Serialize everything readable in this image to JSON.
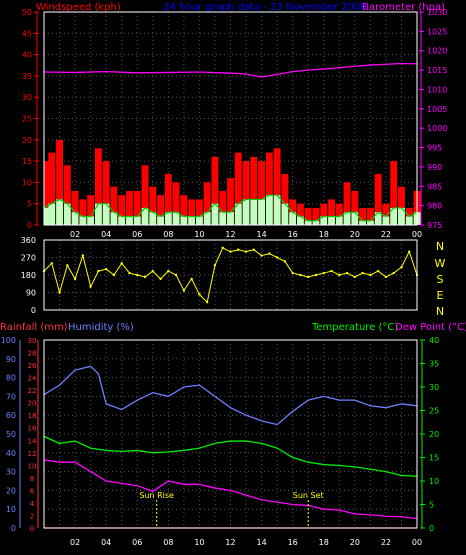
{
  "colors": {
    "background": "#000000",
    "windspeed": "#ff0000",
    "windspeed_avg": "#00cc00",
    "windspeed_fill": "#c0ffc0",
    "barometer": "#ff00ff",
    "title": "#0000ff",
    "winddir": "#ffff00",
    "compass": "#ffff00",
    "rainfall": "#ff3333",
    "humidity": "#6f7fff",
    "temperature": "#00ee00",
    "dewpoint": "#ff00ff",
    "sun_markers": "#ffff00",
    "frame": "#ffffff",
    "grid": "#555555"
  },
  "header": {
    "windspeed_label": "Windspeed (kph)",
    "title": "24 hour graph data - 23 November 2008",
    "barometer_label": "Barometer (hpa)"
  },
  "lower_header": {
    "rainfall_label": "Rainfall (mm)",
    "humidity_label": "Humidity (%)",
    "temperature_label": "Temperature (°C)",
    "dewpoint_label": "Dew Point (°C)"
  },
  "compass": [
    "N",
    "W",
    "S",
    "E",
    "N"
  ],
  "annotations": {
    "sun_rise": "Sun Rise",
    "sun_set": "Sun Set"
  },
  "chart_data": [
    {
      "type": "line",
      "name": "wind-and-pressure",
      "x_ticks": [
        "02",
        "04",
        "06",
        "08",
        "10",
        "12",
        "14",
        "16",
        "18",
        "20",
        "22",
        "00"
      ],
      "x_range_hours": [
        0,
        24
      ],
      "y_left": {
        "label": "Windspeed (kph)",
        "ticks": [
          0,
          5,
          10,
          15,
          20,
          25,
          30,
          35,
          40,
          45,
          50
        ],
        "range": [
          0,
          50
        ]
      },
      "y_right": {
        "label": "Barometer (hpa)",
        "ticks": [
          975,
          980,
          985,
          990,
          995,
          1000,
          1005,
          1010,
          1015,
          1020,
          1025,
          1030
        ],
        "range": [
          975,
          1030
        ]
      },
      "grid": true,
      "series": [
        {
          "name": "Windspeed (kph)",
          "kind": "gust",
          "x": [
            0,
            0.5,
            1,
            1.5,
            2,
            2.5,
            3,
            3.5,
            4,
            4.5,
            5,
            5.5,
            6,
            6.5,
            7,
            7.5,
            8,
            8.5,
            9,
            9.5,
            10,
            10.5,
            11,
            11.5,
            12,
            12.5,
            13,
            13.5,
            14,
            14.5,
            15,
            15.5,
            16,
            16.5,
            17,
            17.5,
            18,
            18.5,
            19,
            19.5,
            20,
            20.5,
            21,
            21.5,
            22,
            22.5,
            23,
            23.5,
            24
          ],
          "y": [
            15,
            17,
            20,
            14,
            8,
            6,
            7,
            18,
            15,
            9,
            7,
            8,
            8,
            14,
            9,
            7,
            12,
            10,
            7,
            6,
            6,
            10,
            16,
            8,
            11,
            17,
            15,
            16,
            15,
            17,
            18,
            12,
            6,
            5,
            4,
            4,
            5,
            6,
            5,
            10,
            8,
            4,
            4,
            12,
            5,
            15,
            9,
            4,
            8
          ]
        },
        {
          "name": "Average windspeed",
          "kind": "average",
          "x": [
            0,
            0.5,
            1,
            1.5,
            2,
            2.5,
            3,
            3.5,
            4,
            4.5,
            5,
            5.5,
            6,
            6.5,
            7,
            7.5,
            8,
            8.5,
            9,
            9.5,
            10,
            10.5,
            11,
            11.5,
            12,
            12.5,
            13,
            13.5,
            14,
            14.5,
            15,
            15.5,
            16,
            16.5,
            17,
            17.5,
            18,
            18.5,
            19,
            19.5,
            20,
            20.5,
            21,
            21.5,
            22,
            22.5,
            23,
            23.5,
            24
          ],
          "y": [
            4,
            5,
            6,
            5,
            3,
            2,
            2,
            5,
            5,
            3,
            2,
            2,
            2,
            4,
            3,
            2,
            3,
            3,
            2,
            2,
            2,
            3,
            5,
            3,
            3,
            5,
            6,
            6,
            6,
            7,
            7,
            5,
            3,
            2,
            1,
            1,
            2,
            2,
            2,
            3,
            3,
            1,
            1,
            3,
            2,
            4,
            4,
            2,
            3
          ]
        },
        {
          "name": "Barometer (hpa)",
          "x": [
            0,
            2,
            4,
            6,
            8,
            10,
            12,
            13,
            14,
            15,
            16,
            17,
            18,
            19,
            20,
            21,
            22,
            23,
            24
          ],
          "y": [
            1014.5,
            1014.4,
            1014.6,
            1014.3,
            1014.4,
            1014.5,
            1014.2,
            1014,
            1013.2,
            1013.9,
            1014.6,
            1015,
            1015.3,
            1015.6,
            1016,
            1016.3,
            1016.5,
            1016.7,
            1016.6
          ]
        }
      ]
    },
    {
      "type": "scatter",
      "name": "wind-direction",
      "x_range_hours": [
        0,
        24
      ],
      "y": {
        "ticks": [
          0,
          90,
          180,
          270,
          360
        ],
        "range": [
          0,
          360
        ]
      },
      "grid": true,
      "series": [
        {
          "name": "Wind direction",
          "x": [
            0,
            0.5,
            1,
            1.5,
            2,
            2.5,
            3,
            3.5,
            4,
            4.5,
            5,
            5.5,
            6,
            6.5,
            7,
            7.5,
            8,
            8.5,
            9,
            9.5,
            10,
            10.5,
            11,
            11.5,
            12,
            12.5,
            13,
            13.5,
            14,
            14.5,
            15,
            15.5,
            16,
            16.5,
            17,
            17.5,
            18,
            18.5,
            19,
            19.5,
            20,
            20.5,
            21,
            21.5,
            22,
            22.5,
            23,
            23.5,
            24
          ],
          "y": [
            200,
            240,
            90,
            230,
            160,
            280,
            120,
            200,
            210,
            180,
            240,
            190,
            180,
            170,
            200,
            160,
            200,
            180,
            100,
            160,
            80,
            40,
            230,
            320,
            300,
            310,
            300,
            310,
            280,
            290,
            270,
            250,
            190,
            180,
            170,
            180,
            190,
            200,
            180,
            190,
            170,
            190,
            180,
            200,
            170,
            190,
            220,
            300,
            180
          ]
        }
      ]
    },
    {
      "type": "line",
      "name": "temperature-humidity-rain",
      "x_ticks": [
        "02",
        "04",
        "06",
        "08",
        "10",
        "12",
        "14",
        "16",
        "18",
        "20",
        "22",
        "00"
      ],
      "x_range_hours": [
        0,
        24
      ],
      "y_left_humidity": {
        "label": "Humidity (%)",
        "ticks": [
          0,
          10,
          20,
          30,
          40,
          50,
          60,
          70,
          80,
          90,
          100
        ],
        "range": [
          0,
          100
        ]
      },
      "y_left_rain": {
        "label": "Rainfall (mm)",
        "ticks": [
          0,
          2,
          4,
          6,
          8,
          10,
          12,
          14,
          16,
          18,
          20,
          22,
          24,
          26,
          28,
          30
        ],
        "range": [
          0,
          30
        ]
      },
      "y_right": {
        "label": "Temperature (°C)",
        "ticks": [
          0,
          5,
          10,
          15,
          20,
          25,
          30,
          35,
          40
        ],
        "range": [
          0,
          40
        ]
      },
      "grid": true,
      "series": [
        {
          "name": "Humidity (%)",
          "x": [
            0,
            1,
            2,
            3,
            3.5,
            4,
            5,
            6,
            7,
            8,
            9,
            10,
            11,
            12,
            13,
            14,
            15,
            16,
            17,
            18,
            19,
            20,
            21,
            22,
            23,
            24
          ],
          "y": [
            71,
            76,
            84,
            86,
            82,
            66,
            63,
            68,
            72,
            70,
            75,
            76,
            70,
            64,
            60,
            57,
            55,
            62,
            68,
            70,
            68,
            68,
            65,
            64,
            66,
            65
          ]
        },
        {
          "name": "Temperature (°C)",
          "x": [
            0,
            1,
            2,
            3,
            4,
            5,
            6,
            7,
            8,
            9,
            10,
            11,
            12,
            13,
            14,
            15,
            16,
            17,
            18,
            19,
            20,
            21,
            22,
            23,
            24
          ],
          "y": [
            19.5,
            18,
            18.5,
            17,
            16.5,
            16.3,
            16.5,
            16,
            16.2,
            16.5,
            17,
            18,
            18.5,
            18.5,
            18,
            17,
            15,
            14,
            13.5,
            13.3,
            13,
            12.5,
            12,
            11.2,
            11
          ]
        },
        {
          "name": "Dew Point (°C)",
          "x": [
            0,
            1,
            2,
            3,
            4,
            5,
            6,
            7,
            8,
            9,
            10,
            11,
            12,
            13,
            14,
            15,
            16,
            17,
            18,
            19,
            20,
            21,
            22,
            23,
            24
          ],
          "y": [
            14.5,
            14,
            14,
            12,
            10,
            9.5,
            9,
            7.8,
            10,
            9.3,
            9.3,
            8.5,
            8,
            7,
            6,
            5.5,
            5,
            4.8,
            4,
            3.8,
            3,
            2.8,
            2.5,
            2.4,
            2
          ]
        },
        {
          "name": "Rainfall (mm)",
          "x": [
            0,
            24
          ],
          "y": [
            0,
            0
          ]
        }
      ],
      "markers": [
        {
          "label": "Sun Rise",
          "hour": 7.25
        },
        {
          "label": "Sun Set",
          "hour": 17.0
        }
      ]
    }
  ]
}
